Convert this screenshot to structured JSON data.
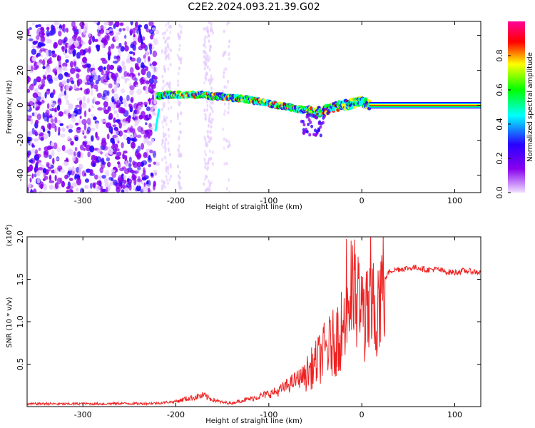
{
  "figure_title": "C2E2.2024.093.21.39.G02",
  "chart_data": [
    {
      "type": "heatmap",
      "xlabel": "Height of straight line (km)",
      "ylabel": "Frequency (Hz)",
      "xlim": [
        -360,
        128
      ],
      "ylim": [
        -50,
        48
      ],
      "xticks": [
        -300,
        -200,
        -100,
        0,
        100
      ],
      "yticks": [
        -40,
        -20,
        0,
        20,
        40
      ],
      "colorbar": {
        "label": "Normalized spectral amplitude",
        "range": [
          0.0,
          1.0
        ],
        "ticks": [
          0.0,
          0.2,
          0.4,
          0.6,
          0.8
        ],
        "colormap": [
          "#e6ccff",
          "#8800ee",
          "#2a00ff",
          "#00ffff",
          "#00ff00",
          "#ffff00",
          "#ff0000",
          "#ff0099"
        ]
      },
      "ridge": {
        "x": [
          -220,
          -210,
          -200,
          -190,
          -180,
          -170,
          -160,
          -150,
          -140,
          -130,
          -120,
          -110,
          -100,
          -90,
          -80,
          -70,
          -60,
          -50,
          -40,
          -30,
          -20,
          -10,
          0,
          5,
          10,
          50,
          100,
          128
        ],
        "y": [
          5,
          6,
          6,
          6,
          6,
          6,
          5,
          5,
          4,
          4,
          3,
          2,
          1,
          0,
          -1,
          -2,
          -3,
          -4,
          -3,
          -1,
          0,
          1,
          2,
          1,
          0,
          0,
          0,
          0
        ]
      },
      "grid": false
    },
    {
      "type": "line",
      "xlabel": "Height of straight line (km)",
      "ylabel": "SNR (10 * v/v)",
      "yscale_label": "(x10",
      "yscale_exp": "4",
      "xlim": [
        -360,
        128
      ],
      "ylim": [
        0,
        20000
      ],
      "xticks": [
        -300,
        -200,
        -100,
        0,
        100
      ],
      "yticks": [
        5000,
        10000,
        15000,
        20000
      ],
      "ytick_labels": [
        "0.5",
        "1.0",
        "1.5",
        "2.0"
      ],
      "line_color": "#ee2222",
      "series": [
        {
          "x": [
            -360,
            -340,
            -320,
            -300,
            -280,
            -260,
            -240,
            -220,
            -200,
            -190,
            -180,
            -170,
            -160,
            -150,
            -140,
            -130,
            -120,
            -110,
            -100,
            -90,
            -80,
            -70,
            -60,
            -50,
            -40,
            -30,
            -25,
            -20,
            -15,
            -10,
            -5,
            0,
            5,
            10,
            15,
            20,
            25,
            30,
            40,
            50,
            60,
            70,
            80,
            90,
            100,
            110,
            120,
            128
          ],
          "y": [
            300,
            350,
            300,
            350,
            320,
            380,
            350,
            400,
            600,
            900,
            1100,
            1300,
            800,
            500,
            400,
            700,
            900,
            1200,
            1500,
            1800,
            2500,
            3200,
            3800,
            5000,
            6500,
            7500,
            8500,
            9500,
            12000,
            13500,
            12000,
            11000,
            10500,
            11000,
            12000,
            13500,
            15000,
            16000,
            16200,
            16300,
            16400,
            16100,
            16200,
            15900,
            15800,
            16000,
            15900,
            15800
          ]
        }
      ],
      "grid": false
    }
  ]
}
